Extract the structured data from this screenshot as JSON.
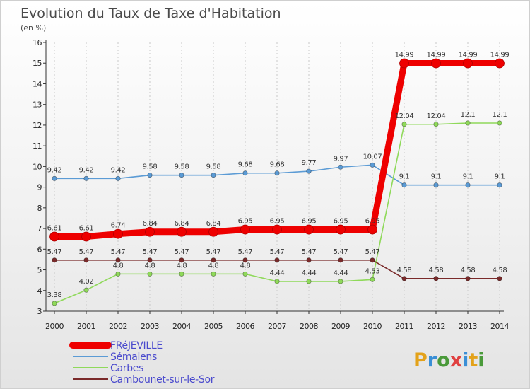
{
  "header": {
    "title": "Evolution du Taux de Taxe d'Habitation",
    "subtitle": "(en %)"
  },
  "brand": {
    "text": "Proxiti",
    "letter_colors": [
      "#e3a21a",
      "#3a8fd6",
      "#4a9a3a",
      "#e04040",
      "#3a8fd6",
      "#e3a21a",
      "#4a9a3a"
    ]
  },
  "chart_data": {
    "type": "line",
    "title": "Evolution du Taux de Taxe d'Habitation",
    "subtitle": "(en %)",
    "xlabel": "",
    "ylabel": "",
    "x": [
      "2000",
      "2001",
      "2002",
      "2003",
      "2004",
      "2005",
      "2006",
      "2007",
      "2008",
      "2009",
      "2010",
      "2011",
      "2012",
      "2013",
      "2014"
    ],
    "ylim": [
      3,
      16
    ],
    "yticks": [
      "3",
      "4",
      "5",
      "6",
      "7",
      "8",
      "9",
      "10",
      "11",
      "12",
      "13",
      "14",
      "15",
      "16"
    ],
    "grid": "dashed vertical",
    "legend_position": "bottom-left",
    "series": [
      {
        "name": "FRéJEVILLE",
        "color": "#ee0000",
        "emphasis": "thick",
        "values": [
          6.61,
          6.61,
          6.74,
          6.84,
          6.84,
          6.84,
          6.95,
          6.95,
          6.95,
          6.95,
          6.95,
          14.99,
          14.99,
          14.99,
          14.99
        ],
        "labels": [
          "6.61",
          "6.61",
          "6.74",
          "6.84",
          "6.84",
          "6.84",
          "6.95",
          "6.95",
          "6.95",
          "6.95",
          "6.95",
          "14.99",
          "14.99",
          "14.99",
          "14.99"
        ]
      },
      {
        "name": "Sémalens",
        "color": "#5b9bd5",
        "values": [
          9.42,
          9.42,
          9.42,
          9.58,
          9.58,
          9.58,
          9.68,
          9.68,
          9.77,
          9.97,
          10.07,
          9.1,
          9.1,
          9.1,
          9.1
        ],
        "labels": [
          "9.42",
          "9.42",
          "9.42",
          "9.58",
          "9.58",
          "9.58",
          "9.68",
          "9.68",
          "9.77",
          "9.97",
          "10.07",
          "9.1",
          "9.1",
          "9.1",
          "9.1"
        ]
      },
      {
        "name": "Carbes",
        "color": "#8fd95a",
        "values": [
          3.38,
          4.02,
          4.8,
          4.8,
          4.8,
          4.8,
          4.8,
          4.44,
          4.44,
          4.44,
          4.53,
          12.04,
          12.04,
          12.1,
          12.1
        ],
        "labels": [
          "3.38",
          "4.02",
          "4.8",
          "4.8",
          "4.8",
          "4.8",
          "4.8",
          "4.44",
          "4.44",
          "4.44",
          "4.53",
          "12.04",
          "12.04",
          "12.1",
          "12.1"
        ]
      },
      {
        "name": "Cambounet-sur-le-Sor",
        "color": "#7a2a2a",
        "values": [
          5.47,
          5.47,
          5.47,
          5.47,
          5.47,
          5.47,
          5.47,
          5.47,
          5.47,
          5.47,
          5.47,
          4.58,
          4.58,
          4.58,
          4.58
        ],
        "labels": [
          "5.47",
          "5.47",
          "5.47",
          "5.47",
          "5.47",
          "5.47",
          "5.47",
          "5.47",
          "5.47",
          "5.47",
          "5.47",
          "4.58",
          "4.58",
          "4.58",
          "4.58"
        ]
      }
    ]
  }
}
